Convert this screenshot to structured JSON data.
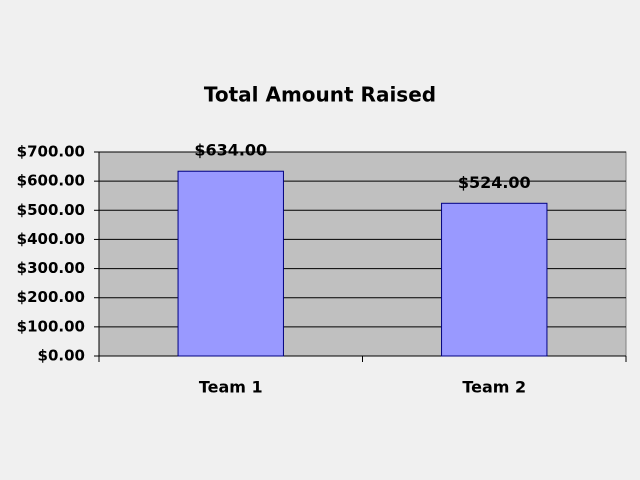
{
  "chart_data": {
    "type": "bar",
    "title": "Total Amount Raised",
    "categories": [
      "Team 1",
      "Team 2"
    ],
    "values": [
      634,
      524
    ],
    "value_labels": [
      "$634.00",
      "$524.00"
    ],
    "color": "#9999ff",
    "plot_background": "#c0c0c0",
    "ylim": [
      0,
      700
    ],
    "yticks": [
      {
        "value": 0,
        "label": "$0.00"
      },
      {
        "value": 100,
        "label": "$100.00"
      },
      {
        "value": 200,
        "label": "$200.00"
      },
      {
        "value": 300,
        "label": "$300.00"
      },
      {
        "value": 400,
        "label": "$400.00"
      },
      {
        "value": 500,
        "label": "$500.00"
      },
      {
        "value": 600,
        "label": "$600.00"
      },
      {
        "value": 700,
        "label": "$700.00"
      }
    ],
    "grid": true
  }
}
